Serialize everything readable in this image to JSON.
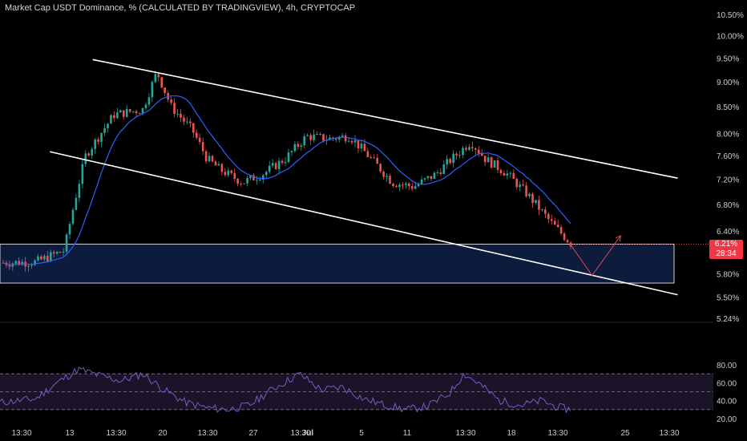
{
  "header": {
    "title": "Market Cap USDT Dominance, % (CALCULATED BY TRADINGVIEW), 4h, CRYPTOCAP"
  },
  "price_badge": {
    "value": "6.21%",
    "countdown": "28:34"
  },
  "colors": {
    "up": "#26a69a",
    "down": "#ef5350",
    "ma": "#2962ff",
    "channel": "#ffffff",
    "zone_fill": "#0d1b3d",
    "zone_border": "#ffffff",
    "projection": "#e0485a",
    "rsi": "#7e57c2",
    "badge": "#f23645"
  },
  "icons": {
    "projection": "arrow-up-right-icon"
  },
  "chart_data": [
    {
      "type": "candlestick",
      "title": "Market Cap USDT Dominance, % (CALCULATED BY TRADINGVIEW), 4h, CRYPTOCAP",
      "x_tick_labels": [
        "13:30",
        "13",
        "13:30",
        "20",
        "13:30",
        "27",
        "13:30",
        "Jul",
        "5",
        "11",
        "13:30",
        "18",
        "13:30",
        "25",
        "13:30"
      ],
      "y_tick_labels": [
        "10.50%",
        "10.00%",
        "9.50%",
        "9.00%",
        "8.50%",
        "8.00%",
        "7.60%",
        "7.20%",
        "6.80%",
        "6.40%",
        "5.80%",
        "5.50%",
        "5.24%"
      ],
      "ylim": [
        5.24,
        10.5
      ],
      "last_value": 6.21,
      "close_path": [
        [
          0,
          5.95
        ],
        [
          0.05,
          5.96
        ],
        [
          0.09,
          6.12
        ],
        [
          0.12,
          7.6
        ],
        [
          0.16,
          8.35
        ],
        [
          0.2,
          8.45
        ],
        [
          0.22,
          9.2
        ],
        [
          0.24,
          8.5
        ],
        [
          0.27,
          8.05
        ],
        [
          0.29,
          7.55
        ],
        [
          0.31,
          7.35
        ],
        [
          0.34,
          7.15
        ],
        [
          0.37,
          7.3
        ],
        [
          0.4,
          7.55
        ],
        [
          0.43,
          7.95
        ],
        [
          0.46,
          7.9
        ],
        [
          0.49,
          7.95
        ],
        [
          0.52,
          7.55
        ],
        [
          0.55,
          7.15
        ],
        [
          0.58,
          7.08
        ],
        [
          0.61,
          7.28
        ],
        [
          0.64,
          7.62
        ],
        [
          0.66,
          7.85
        ],
        [
          0.68,
          7.55
        ],
        [
          0.71,
          7.3
        ],
        [
          0.74,
          6.95
        ],
        [
          0.77,
          6.55
        ],
        [
          0.8,
          6.22
        ]
      ],
      "channel_upper": [
        [
          0.13,
          9.47
        ],
        [
          0.95,
          7.22
        ]
      ],
      "channel_lower": [
        [
          0.07,
          7.67
        ],
        [
          0.95,
          5.53
        ]
      ],
      "support_zone": [
        5.68,
        6.21
      ],
      "projection_path": [
        [
          0.8,
          6.2
        ],
        [
          0.83,
          5.78
        ],
        [
          0.87,
          6.33
        ]
      ],
      "rsi": {
        "ylim": [
          20,
          80
        ],
        "y_tick_labels": [
          "80.00",
          "60.00",
          "40.00",
          "20.00"
        ],
        "levels": [
          70,
          50,
          30
        ],
        "path": [
          [
            0,
            38
          ],
          [
            0.05,
            42
          ],
          [
            0.08,
            60
          ],
          [
            0.11,
            75
          ],
          [
            0.14,
            68
          ],
          [
            0.17,
            62
          ],
          [
            0.2,
            70
          ],
          [
            0.23,
            52
          ],
          [
            0.26,
            38
          ],
          [
            0.29,
            32
          ],
          [
            0.32,
            30
          ],
          [
            0.35,
            35
          ],
          [
            0.38,
            52
          ],
          [
            0.42,
            70
          ],
          [
            0.45,
            52
          ],
          [
            0.48,
            55
          ],
          [
            0.51,
            42
          ],
          [
            0.54,
            35
          ],
          [
            0.57,
            30
          ],
          [
            0.6,
            34
          ],
          [
            0.63,
            48
          ],
          [
            0.65,
            70
          ],
          [
            0.67,
            60
          ],
          [
            0.7,
            40
          ],
          [
            0.73,
            35
          ],
          [
            0.76,
            40
          ],
          [
            0.78,
            33
          ],
          [
            0.8,
            30
          ]
        ]
      }
    }
  ]
}
